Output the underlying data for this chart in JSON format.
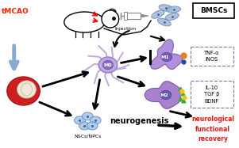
{
  "bg_color": "#ffffff",
  "tmcao_label": "tMCAO",
  "tmcao_color": "#ff2200",
  "injection_label": "Injection",
  "bmscs_label": "BMSCs",
  "m0_label": "M0",
  "m1_label": "M1",
  "m2_label": "M2",
  "tnf_label": "TNF-α\niNOS",
  "il10_label": "IL-10\nTGF β\nBDNF",
  "neurogenesis_label": "neurogenesis",
  "nscs_label": "NSCs/NPCs",
  "recovery_label": "neurological\nfunctional\nrecovery",
  "recovery_color": "#ee1111",
  "microglia_color": "#c0a8e0",
  "m1_color": "#b090d8",
  "m2_color": "#a880cc",
  "arrow_color": "#111111",
  "blue_arrow_color": "#88aad0",
  "nscs_color": "#a8c8e8",
  "dot_orange": "#e08020",
  "dot_blue": "#2050a0",
  "dot_green": "#40a840",
  "dot_yellow": "#e8c820",
  "bmsc_color": "#a0b8d8"
}
